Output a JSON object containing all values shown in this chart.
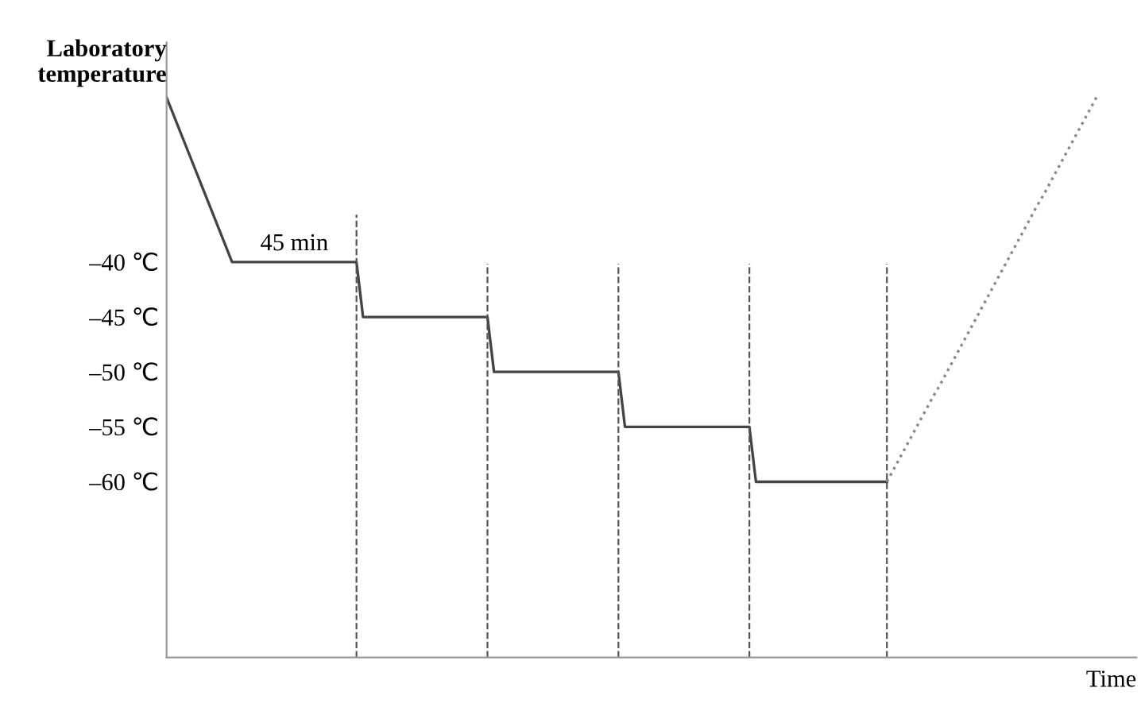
{
  "chart_data": {
    "type": "line",
    "xlabel": "Time",
    "ylabel": "Laboratory\ntemperature",
    "categories": [
      null,
      null,
      null,
      null,
      null,
      null,
      null,
      null,
      null,
      null,
      null,
      null,
      null,
      null,
      null,
      null,
      null,
      null,
      null,
      null,
      null,
      null,
      null,
      null,
      null,
      null,
      null,
      null,
      null,
      null,
      null,
      null,
      null,
      null,
      null,
      null,
      null,
      null,
      null,
      null,
      null,
      null,
      null,
      null,
      null,
      null,
      null,
      null,
      null,
      null,
      null,
      null,
      null,
      null,
      null,
      null,
      null,
      null,
      null,
      null,
      null,
      null,
      null,
      null,
      null,
      null,
      null,
      null,
      null,
      null,
      null,
      null,
      null,
      null,
      null,
      null,
      null,
      null,
      null,
      null,
      null,
      null,
      null,
      null,
      null,
      null,
      null,
      null,
      null,
      null,
      null,
      null,
      null,
      null,
      null,
      null,
      null,
      null,
      null,
      null,
      null,
      null,
      null,
      null,
      null,
      null,
      null,
      null,
      null,
      null,
      null,
      null,
      null,
      null,
      null,
      null,
      null,
      null,
      null,
      null,
      null,
      null,
      null,
      null,
      null,
      null,
      null,
      null,
      null,
      null,
      null,
      null,
      null,
      null,
      null,
      null,
      null,
      null,
      null,
      null,
      null,
      null,
      null
    ],
    "series": [
      {
        "values": [
          -25,
          -26.5,
          -28,
          -29.5,
          -31,
          -32.5,
          -34,
          -35.5,
          -37,
          -38.5,
          -40,
          -40,
          -40,
          -40,
          -40,
          -40,
          -40,
          -40,
          -40,
          -40,
          -40,
          -40,
          -40,
          -40,
          -40,
          -40,
          -40,
          -40,
          -40,
          -40,
          -45,
          -45,
          -45,
          -45,
          -45,
          -45,
          -45,
          -45,
          -45,
          -45,
          -45,
          -45,
          -45,
          -45,
          -45,
          -45,
          -45,
          -45,
          -45,
          -45,
          -50,
          -50,
          -50,
          -50,
          -50,
          -50,
          -50,
          -50,
          -50,
          -50,
          -50,
          -50,
          -50,
          -50,
          -50,
          -50,
          -50,
          -50,
          -50,
          -50,
          -55,
          -55,
          -55,
          -55,
          -55,
          -55,
          -55,
          -55,
          -55,
          -55,
          -55,
          -55,
          -55,
          -55,
          -55,
          -55,
          -55,
          -55,
          -55,
          -55,
          -60,
          -60,
          -60,
          -60,
          -60,
          -60,
          -60,
          -60,
          -60,
          -60,
          -60,
          -60,
          -60,
          -60,
          -60,
          -60,
          -60,
          -60,
          -60,
          -60,
          -60,
          null,
          null,
          null,
          null,
          null,
          null,
          null,
          null,
          null,
          null,
          null,
          null,
          null,
          null,
          null,
          null,
          null,
          null,
          null,
          null,
          null,
          null,
          null,
          null,
          null,
          null,
          null,
          null,
          null,
          null,
          null,
          null
        ],
        "color": "#444444",
        "line_style": "solid"
      },
      {
        "values": [
          null,
          null,
          null,
          null,
          null,
          null,
          null,
          null,
          null,
          null,
          null,
          null,
          null,
          null,
          null,
          null,
          null,
          null,
          null,
          null,
          null,
          null,
          null,
          null,
          null,
          null,
          null,
          null,
          null,
          null,
          null,
          null,
          null,
          null,
          null,
          null,
          null,
          null,
          null,
          null,
          null,
          null,
          null,
          null,
          null,
          null,
          null,
          null,
          null,
          null,
          null,
          null,
          null,
          null,
          null,
          null,
          null,
          null,
          null,
          null,
          null,
          null,
          null,
          null,
          null,
          null,
          null,
          null,
          null,
          null,
          null,
          null,
          null,
          null,
          null,
          null,
          null,
          null,
          null,
          null,
          null,
          null,
          null,
          null,
          null,
          null,
          null,
          null,
          null,
          null,
          null,
          null,
          null,
          null,
          null,
          null,
          null,
          null,
          null,
          null,
          null,
          null,
          null,
          null,
          null,
          null,
          null,
          null,
          null,
          null,
          -60,
          -58.9,
          -57.8,
          -56.7,
          -55.6,
          -54.5,
          -53.4,
          -52.3,
          -51.3,
          -50.2,
          -49.1,
          -48,
          -46.9,
          -45.8,
          -44.7,
          -43.6,
          -42.5,
          -41.4,
          -40.3,
          -39.2,
          -38.1,
          -37,
          -35.9,
          -34.8,
          -33.8,
          -32.7,
          -31.6,
          -30.5,
          -29.4,
          -28.3,
          -27.2,
          -26.1,
          -25
        ],
        "color": "#888888",
        "line_style": "dotted"
      }
    ],
    "ylim": [
      -76,
      -20
    ],
    "yticks": [
      {
        "value": -40,
        "label": "–40 ℃"
      },
      {
        "value": -45,
        "label": "–45 ℃"
      },
      {
        "value": -50,
        "label": "–50 ℃"
      },
      {
        "value": -55,
        "label": "–55 ℃"
      },
      {
        "value": -60,
        "label": "–60 ℃"
      }
    ],
    "annotations": [
      "45 min"
    ],
    "grid": false,
    "legend": false,
    "marker": "none"
  }
}
